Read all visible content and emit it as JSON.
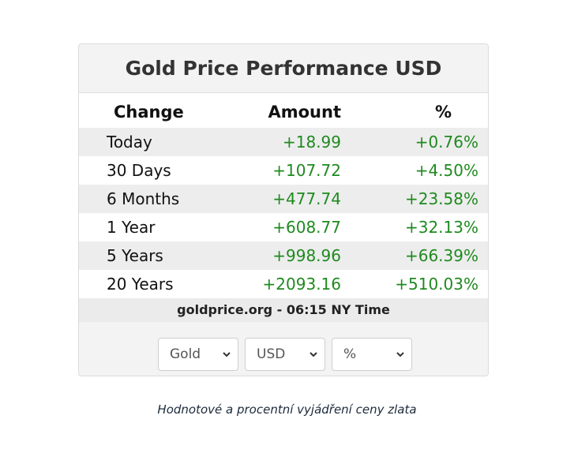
{
  "widget": {
    "title": "Gold Price Performance USD",
    "headers": {
      "change": "Change",
      "amount": "Amount",
      "percent": "%"
    },
    "rows": [
      {
        "label": "Today",
        "amount": "+18.99",
        "percent": "+0.76%"
      },
      {
        "label": "30 Days",
        "amount": "+107.72",
        "percent": "+4.50%"
      },
      {
        "label": "6 Months",
        "amount": "+477.74",
        "percent": "+23.58%"
      },
      {
        "label": "1 Year",
        "amount": "+608.77",
        "percent": "+32.13%"
      },
      {
        "label": "5 Years",
        "amount": "+998.96",
        "percent": "+66.39%"
      },
      {
        "label": "20 Years",
        "amount": "+2093.16",
        "percent": "+510.03%"
      }
    ],
    "footer": "goldprice.org - 06:15 NY Time",
    "selects": {
      "metal": "Gold",
      "currency": "USD",
      "mode": "%"
    }
  },
  "caption": "Hodnotové a procentní vyjádření ceny zlata",
  "colors": {
    "positive": "#1f8a1f",
    "shaded_row": "#ededed",
    "text": "#111111"
  }
}
